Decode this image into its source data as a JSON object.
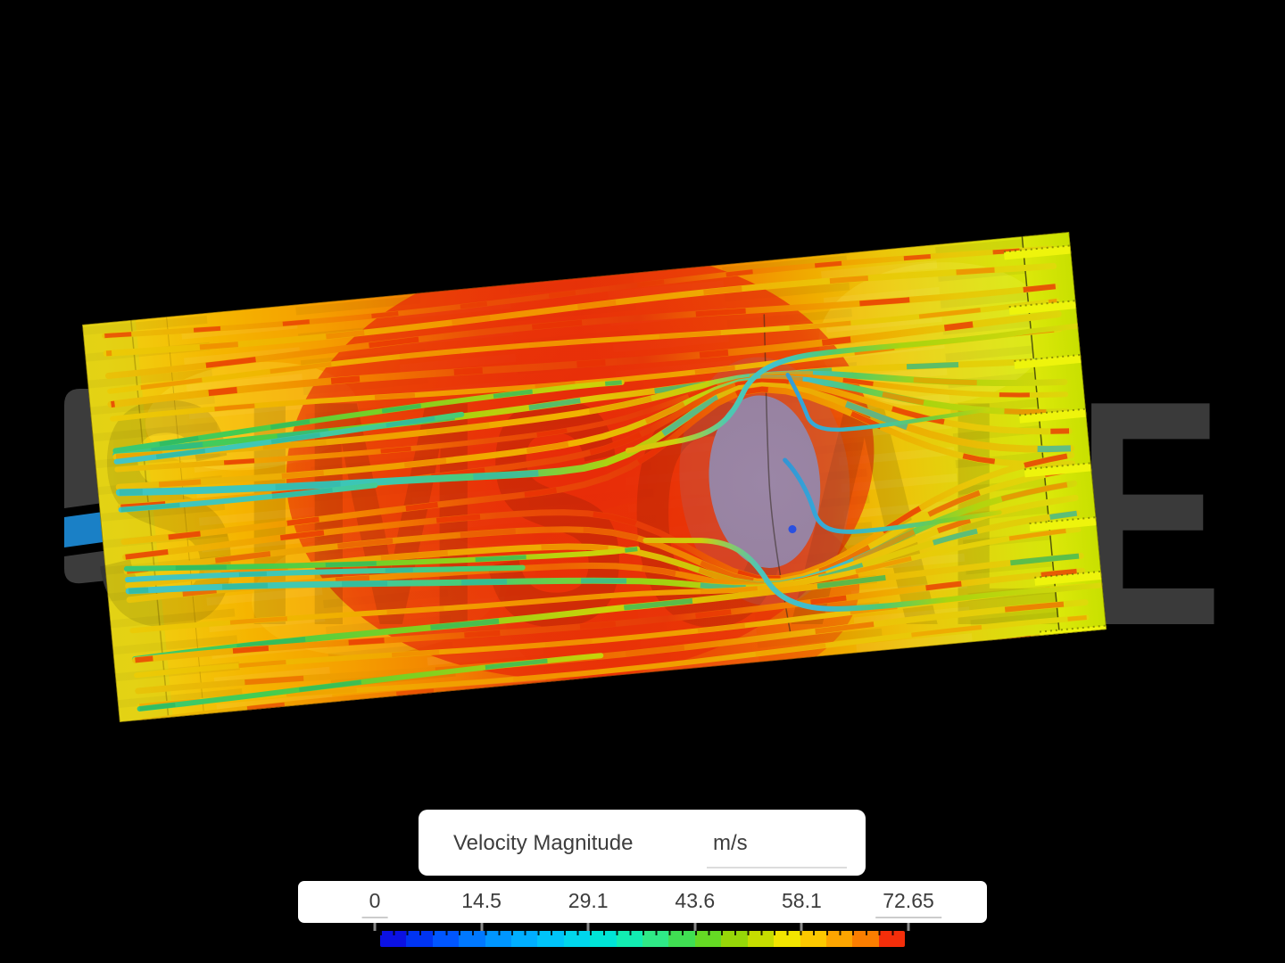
{
  "watermark": {
    "text": "SIMSCALE"
  },
  "legend": {
    "title": "Velocity Magnitude",
    "unit": "m/s"
  },
  "colorbar": {
    "min": 0,
    "max": 72.65,
    "tick_labels": [
      "0",
      "14.5",
      "29.1",
      "43.6",
      "58.1",
      "72.65"
    ],
    "colors": [
      "#0b11e3",
      "#0034f2",
      "#0056ff",
      "#0078ff",
      "#0096ff",
      "#00aeff",
      "#00c4f9",
      "#00d6ec",
      "#00e4d7",
      "#12edb2",
      "#2fe987",
      "#40df53",
      "#65da24",
      "#96d708",
      "#c6dd00",
      "#f2e500",
      "#fcc800",
      "#fca500",
      "#fb7e00",
      "#f42e0a"
    ]
  },
  "scene_colors": {
    "background": "#000000",
    "watermark_gray": "#3a3a3a",
    "watermark_blue": "#1a80c6",
    "inlet_yellow": "#f0d012",
    "core_red": "#ec4806",
    "outlet_green": "#cfe600",
    "wake_purple": "#8d7894"
  }
}
